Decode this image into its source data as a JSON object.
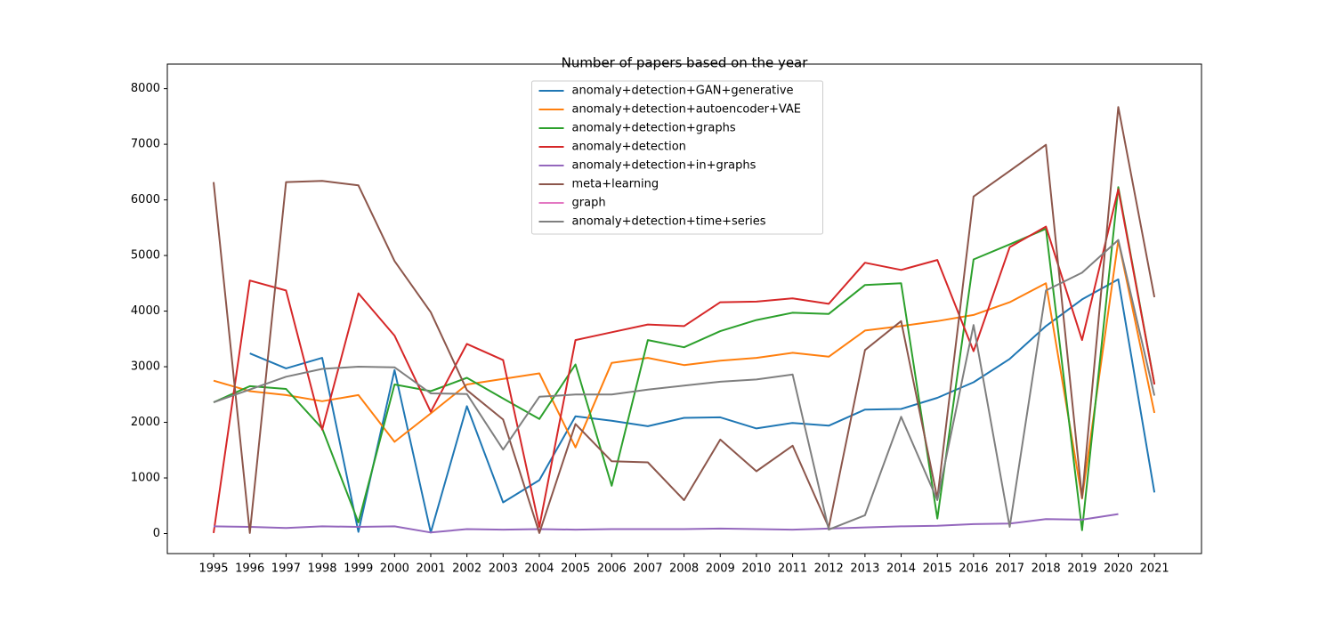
{
  "chart_data": {
    "type": "line",
    "title": "Number of papers based on the year",
    "x": [
      1995,
      1996,
      1997,
      1998,
      1999,
      2000,
      2001,
      2002,
      2003,
      2004,
      2005,
      2006,
      2007,
      2008,
      2009,
      2010,
      2011,
      2012,
      2013,
      2014,
      2015,
      2016,
      2017,
      2018,
      2019,
      2020,
      2021
    ],
    "xlim": [
      1993.72,
      2022.3
    ],
    "ylim": [
      -360,
      8250
    ],
    "yticks": [
      0,
      1000,
      2000,
      3000,
      4000,
      5000,
      6000,
      7000,
      8000
    ],
    "legend": "upper center",
    "series": [
      {
        "name": "anomaly+detection+GAN+generative",
        "color": "#1f77b4",
        "values": [
          null,
          3240,
          2970,
          3160,
          30,
          2940,
          20,
          2290,
          560,
          960,
          2110,
          2030,
          1930,
          2080,
          2090,
          1890,
          1990,
          1940,
          2230,
          2240,
          2440,
          2720,
          3140,
          3730,
          4210,
          4570,
          740
        ]
      },
      {
        "name": "anomaly+detection+autoencoder+VAE",
        "color": "#ff7f0e",
        "values": [
          2750,
          2560,
          2490,
          2380,
          2490,
          1650,
          2160,
          2680,
          2780,
          2880,
          1550,
          3070,
          3160,
          3030,
          3110,
          3160,
          3250,
          3180,
          3650,
          3730,
          3820,
          3930,
          4160,
          4500,
          630,
          5270,
          2170
        ]
      },
      {
        "name": "anomaly+detection+graphs",
        "color": "#2ca02c",
        "values": [
          2360,
          2650,
          2600,
          1890,
          200,
          2680,
          2560,
          2800,
          2430,
          2060,
          3040,
          860,
          3480,
          3350,
          3640,
          3840,
          3970,
          3950,
          4470,
          4500,
          270,
          4930,
          5200,
          5480,
          60,
          6230,
          2690
        ]
      },
      {
        "name": "anomaly+detection",
        "color": "#d62728",
        "values": [
          10,
          4550,
          4370,
          1870,
          4320,
          3560,
          2190,
          3410,
          3120,
          120,
          3480,
          3620,
          3760,
          3730,
          4160,
          4170,
          4230,
          4130,
          4870,
          4740,
          4920,
          3280,
          5150,
          5520,
          3480,
          6190,
          2680
        ]
      },
      {
        "name": "anomaly+detection+in+graphs",
        "color": "#9467bd",
        "values": [
          130,
          120,
          100,
          130,
          120,
          130,
          20,
          80,
          70,
          80,
          70,
          80,
          80,
          80,
          90,
          80,
          70,
          90,
          110,
          130,
          140,
          170,
          180,
          260,
          250,
          350,
          null
        ]
      },
      {
        "name": "meta+learning",
        "color": "#8c564b",
        "values": [
          6320,
          10,
          6320,
          6340,
          6260,
          4900,
          3980,
          2580,
          2050,
          10,
          1970,
          1300,
          1280,
          600,
          1690,
          1120,
          1580,
          110,
          3300,
          3820,
          630,
          6060,
          6520,
          6990,
          640,
          7670,
          4250
        ]
      },
      {
        "name": "graph",
        "color": "#e377c2",
        "values": [
          null,
          null,
          null,
          null,
          null,
          null,
          null,
          null,
          null,
          null,
          null,
          null,
          null,
          null,
          null,
          null,
          null,
          null,
          null,
          null,
          null,
          null,
          null,
          null,
          null,
          null,
          null
        ]
      },
      {
        "name": "anomaly+detection+time+series",
        "color": "#7f7f7f",
        "values": [
          2360,
          2590,
          2820,
          2960,
          3000,
          2990,
          2520,
          2510,
          1510,
          2460,
          2500,
          2500,
          2590,
          2660,
          2730,
          2770,
          2860,
          70,
          330,
          2100,
          600,
          3750,
          120,
          4370,
          4690,
          5280,
          2480
        ]
      }
    ]
  }
}
